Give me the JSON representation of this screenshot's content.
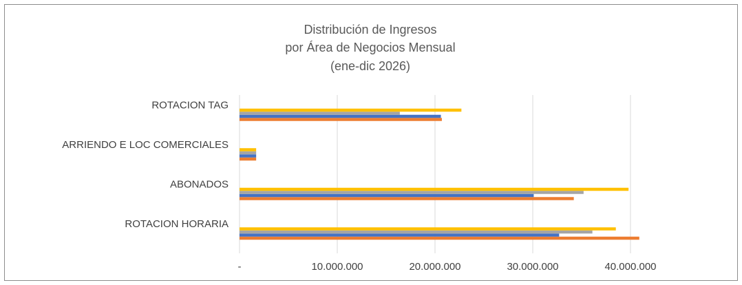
{
  "chart_data": {
    "type": "bar",
    "orientation": "horizontal",
    "title": [
      "Distribución de Ingresos",
      "por Área de Negocios Mensual",
      "(ene-dic 2026)"
    ],
    "categories": [
      "ROTACION HORARIA",
      "ABONADOS",
      "ARRIENDO E LOC COMERCIALES",
      "ROTACION TAG"
    ],
    "series": [
      {
        "color": "#ed7d31",
        "values": [
          40900000,
          34200000,
          1700000,
          20700000
        ]
      },
      {
        "color": "#4472c4",
        "values": [
          32700000,
          30100000,
          1700000,
          20600000
        ]
      },
      {
        "color": "#a5a5a5",
        "values": [
          36100000,
          35200000,
          1700000,
          16400000
        ]
      },
      {
        "color": "#ffc000",
        "values": [
          38500000,
          39800000,
          1700000,
          22700000
        ]
      }
    ],
    "xlim": [
      0,
      43000000
    ],
    "xticks": [
      {
        "value": 0,
        "label": "-"
      },
      {
        "value": 10000000,
        "label": "10.000.000"
      },
      {
        "value": 20000000,
        "label": "20.000.000"
      },
      {
        "value": 30000000,
        "label": "30.000.000"
      },
      {
        "value": 40000000,
        "label": "40.000.000"
      }
    ],
    "grid": true
  }
}
